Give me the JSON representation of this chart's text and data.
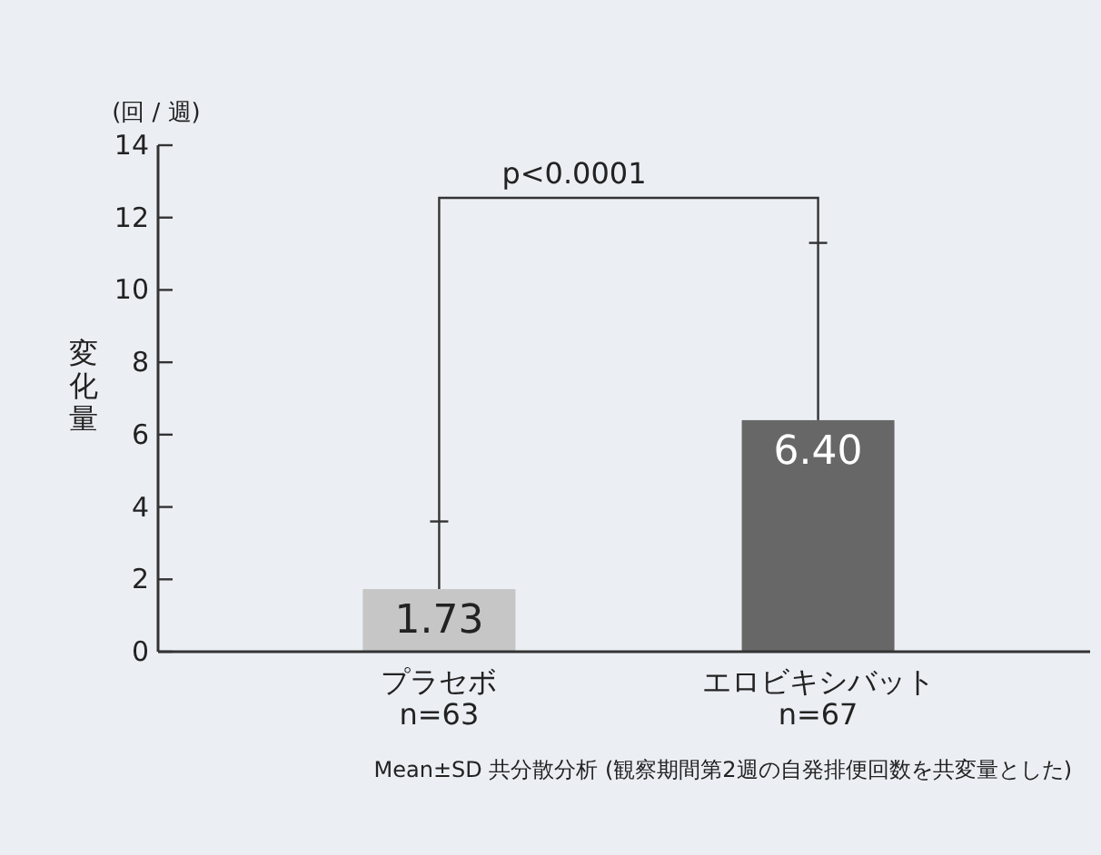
{
  "chart_data": {
    "type": "bar",
    "ylabel": "変化量",
    "categories": [
      "プラセボ\nn=63",
      "エロビキシバット\nn=67"
    ],
    "values": [
      1.73,
      6.4
    ],
    "colors": [
      "#c6c6c6",
      "#676767"
    ],
    "errors": [
      [
        1.73,
        3.6
      ],
      [
        6.4,
        11.3
      ]
    ],
    "ylim": [
      0,
      14
    ],
    "yticks": [
      0,
      2,
      4,
      6,
      8,
      10,
      12,
      14
    ],
    "value_labels": [
      "1.73",
      "6.40"
    ],
    "annotations": [
      "(回 / 週)",
      "p<0.0001",
      "Mean±SD 共分散分析 (観察期間第2週の自発排便回数を共変量とした)"
    ]
  }
}
